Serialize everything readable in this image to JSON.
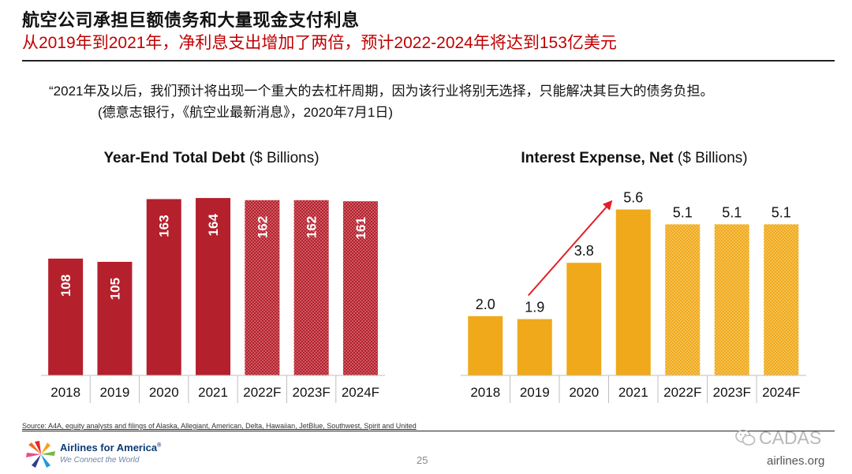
{
  "header": {
    "title": "航空公司承担巨额债务和大量现金支付利息",
    "subtitle": "从2019年到2021年，净利息支出增加了两倍，预计2022-2024年将达到153亿美元"
  },
  "quote": {
    "text": "“2021年及以后，我们预计将出现一个重大的去杠杆周期，因为该行业将别无选择，只能解决其巨大的债务负担。",
    "source": "(德意志银行，《航空业最新消息》，2020年7月1日)"
  },
  "chart_data": [
    {
      "type": "bar",
      "title_bold": "Year-End Total Debt",
      "title_rest": " ($ Billions)",
      "categories": [
        "2018",
        "2019",
        "2020",
        "2021",
        "2022F",
        "2023F",
        "2024F"
      ],
      "values": [
        108,
        105,
        163,
        164,
        162,
        162,
        161
      ],
      "labels": [
        "108",
        "105",
        "163",
        "164",
        "162",
        "162",
        "161"
      ],
      "forecast": [
        false,
        false,
        false,
        false,
        true,
        true,
        true
      ],
      "ylim": [
        0,
        175
      ],
      "color": "#b4202c",
      "label_style": "vertical-inside"
    },
    {
      "type": "bar",
      "title_bold": "Interest Expense, Net",
      "title_rest": " ($ Billions)",
      "categories": [
        "2018",
        "2019",
        "2020",
        "2021",
        "2022F",
        "2023F",
        "2024F"
      ],
      "values": [
        2.0,
        1.9,
        3.8,
        5.6,
        5.1,
        5.1,
        5.1
      ],
      "labels": [
        "2.0",
        "1.9",
        "3.8",
        "5.6",
        "5.1",
        "5.1",
        "5.1"
      ],
      "forecast": [
        false,
        false,
        false,
        false,
        true,
        true,
        true
      ],
      "ylim": [
        0,
        7
      ],
      "color": "#f0a91b",
      "label_style": "above",
      "annotation": {
        "type": "arrow",
        "from_category": "2019",
        "to_category": "2021",
        "color": "#e21e26"
      }
    }
  ],
  "footer": {
    "source": "Source: A4A, equity analysts and filings of Alaska, Allegiant, American, Delta, Hawaiian, JetBlue, Southwest, Spirit and United",
    "logo_name": "Airlines for America",
    "logo_reg": "®",
    "logo_tagline": "We Connect the World",
    "page_number": "25",
    "watermark": "CADAS",
    "website": "airlines.org"
  }
}
